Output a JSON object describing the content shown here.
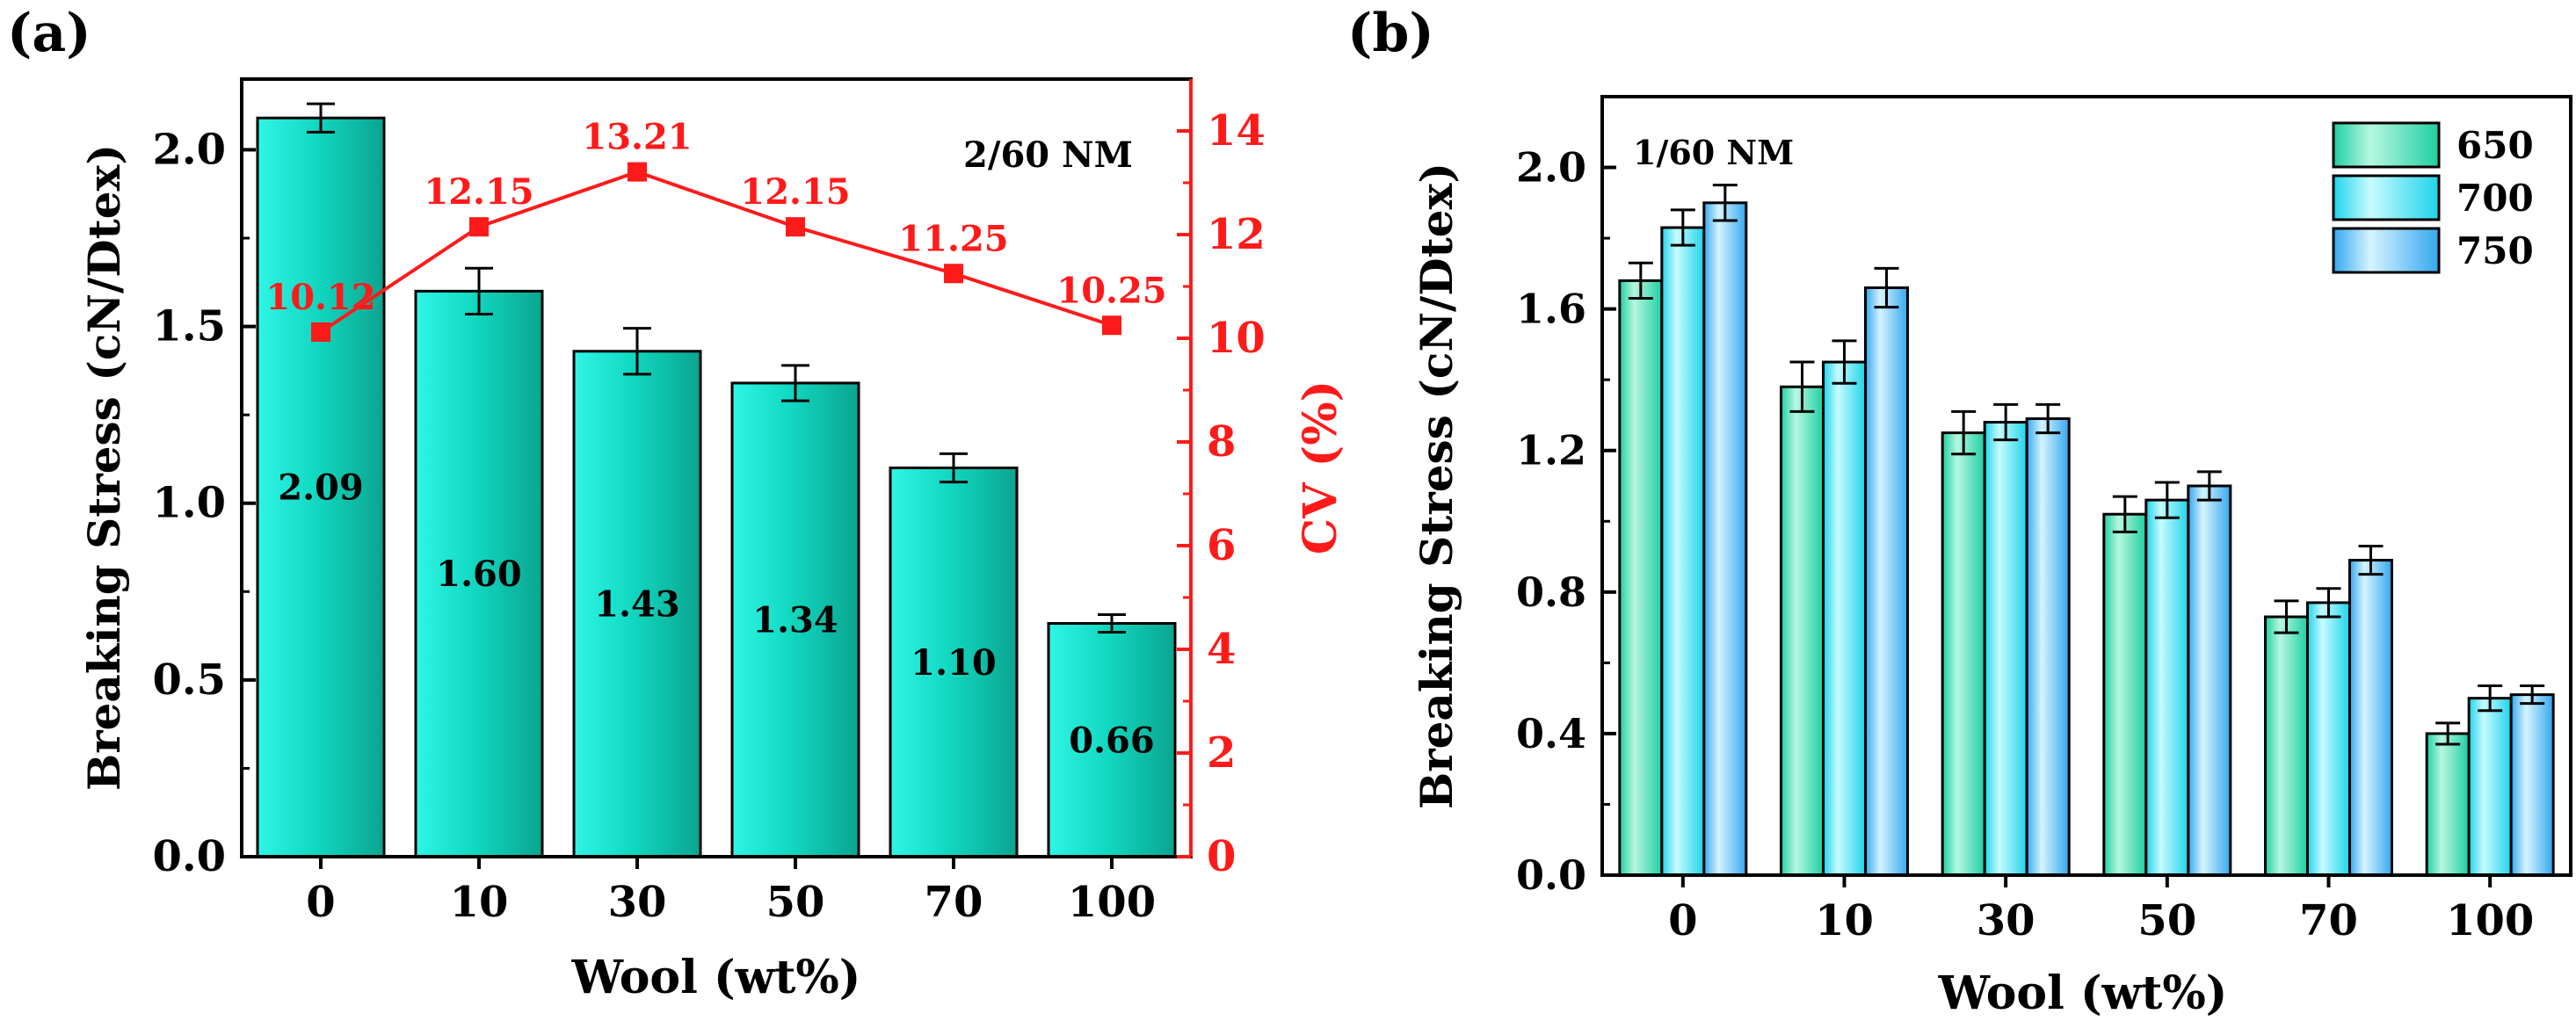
{
  "panel_a": {
    "label": "(a)",
    "annotation": "2/60 NM"
  },
  "panel_b": {
    "label": "(b)",
    "annotation": "1/60 NM"
  },
  "colors": {
    "bar_a_light": "#2ff5e6",
    "bar_a_mid": "#12d9c2",
    "bar_a_dark": "#0aa58f",
    "s650_light": "#b7f7e0",
    "s650_dark": "#1fcfa3",
    "s700_light": "#c6fbff",
    "s700_dark": "#1fd4ea",
    "s750_light": "#d6f3ff",
    "s750_dark": "#34a8ef",
    "cv": "#ff1a1a",
    "axis": "#000000"
  },
  "chart_data": [
    {
      "type": "bar",
      "title": "",
      "xlabel": "Wool (wt%)",
      "ylabel": "Breaking Stress (cN/Dtex)",
      "y2label": "CV (%)",
      "categories": [
        "0",
        "10",
        "30",
        "50",
        "70",
        "100"
      ],
      "ylim": [
        0,
        2.2
      ],
      "y2lim": [
        0,
        15
      ],
      "yticks": [
        "0.0",
        "0.5",
        "1.0",
        "1.5",
        "2.0"
      ],
      "y2ticks": [
        "0",
        "2",
        "4",
        "6",
        "8",
        "10",
        "12",
        "14"
      ],
      "series": [
        {
          "type": "bar",
          "values": [
            2.09,
            1.6,
            1.43,
            1.34,
            1.1,
            0.66
          ],
          "errors": [
            0.04,
            0.065,
            0.065,
            0.05,
            0.04,
            0.025
          ],
          "labels": [
            "2.09",
            "1.60",
            "1.43",
            "1.34",
            "1.10",
            "0.66"
          ]
        },
        {
          "type": "line",
          "axis": "right",
          "values": [
            10.12,
            12.15,
            13.21,
            12.15,
            11.25,
            10.25
          ],
          "labels": [
            "10.12",
            "12.15",
            "13.21",
            "12.15",
            "11.25",
            "10.25"
          ]
        }
      ]
    },
    {
      "type": "bar",
      "title": "",
      "xlabel": "Wool (wt%)",
      "ylabel": "Breaking Stress (cN/Dtex)",
      "categories": [
        "0",
        "10",
        "30",
        "50",
        "70",
        "100"
      ],
      "ylim": [
        0,
        2.2
      ],
      "yticks": [
        "0.0",
        "0.4",
        "0.8",
        "1.2",
        "1.6",
        "2.0"
      ],
      "legend_position": "top-right",
      "series": [
        {
          "name": "650",
          "values": [
            1.68,
            1.38,
            1.25,
            1.02,
            0.73,
            0.4
          ],
          "errors": [
            0.05,
            0.07,
            0.06,
            0.05,
            0.045,
            0.03
          ]
        },
        {
          "name": "700",
          "values": [
            1.83,
            1.45,
            1.28,
            1.06,
            0.77,
            0.5
          ],
          "errors": [
            0.05,
            0.06,
            0.05,
            0.05,
            0.04,
            0.035
          ]
        },
        {
          "name": "750",
          "values": [
            1.9,
            1.66,
            1.29,
            1.1,
            0.89,
            0.51
          ],
          "errors": [
            0.05,
            0.055,
            0.04,
            0.04,
            0.04,
            0.025
          ]
        }
      ]
    }
  ]
}
